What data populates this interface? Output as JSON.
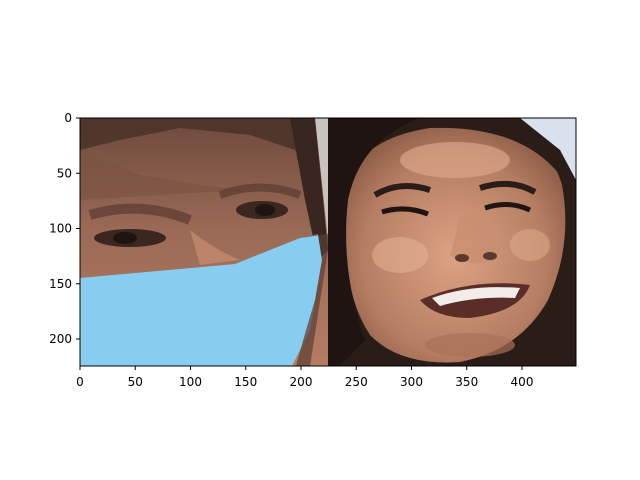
{
  "figure": {
    "x_ticks": [
      "0",
      "50",
      "100",
      "150",
      "200",
      "250",
      "300",
      "350",
      "400"
    ],
    "y_ticks": [
      "0",
      "50",
      "100",
      "150",
      "200"
    ]
  },
  "image": {
    "panels": [
      {
        "description_name": "masked-face-crop",
        "mask_color": "#87cdf0"
      },
      {
        "description_name": "smiling-face"
      }
    ],
    "colors": {
      "skin": "#b57d62",
      "skin_light": "#d79e7e",
      "hair": "#2a1c17",
      "mask": "#87cdf0",
      "teeth": "#f2ede8"
    }
  }
}
